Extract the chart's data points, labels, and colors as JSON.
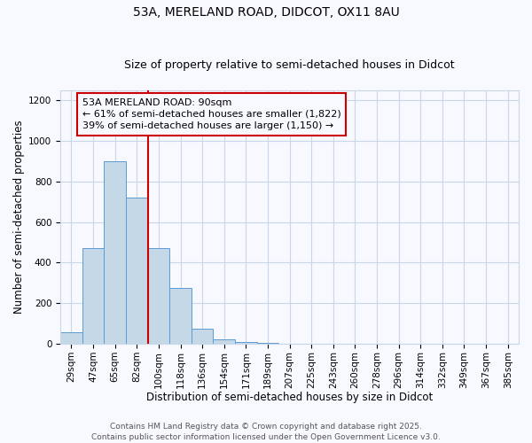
{
  "title_line1": "53A, MERELAND ROAD, DIDCOT, OX11 8AU",
  "title_line2": "Size of property relative to semi-detached houses in Didcot",
  "xlabel": "Distribution of semi-detached houses by size in Didcot",
  "ylabel": "Number of semi-detached properties",
  "categories": [
    "29sqm",
    "47sqm",
    "65sqm",
    "82sqm",
    "100sqm",
    "118sqm",
    "136sqm",
    "154sqm",
    "171sqm",
    "189sqm",
    "207sqm",
    "225sqm",
    "243sqm",
    "260sqm",
    "278sqm",
    "296sqm",
    "314sqm",
    "332sqm",
    "349sqm",
    "367sqm",
    "385sqm"
  ],
  "values": [
    55,
    470,
    900,
    720,
    470,
    275,
    75,
    20,
    10,
    5,
    0,
    0,
    0,
    0,
    0,
    0,
    0,
    0,
    0,
    0,
    0
  ],
  "bar_color": "#c5d8e8",
  "bar_edge_color": "#5b9bd5",
  "red_line_color": "#cc0000",
  "annotation_line1": "53A MERELAND ROAD: 90sqm",
  "annotation_line2": "← 61% of semi-detached houses are smaller (1,822)",
  "annotation_line3": "39% of semi-detached houses are larger (1,150) →",
  "ylim": [
    0,
    1250
  ],
  "yticks": [
    0,
    200,
    400,
    600,
    800,
    1000,
    1200
  ],
  "footer_line1": "Contains HM Land Registry data © Crown copyright and database right 2025.",
  "footer_line2": "Contains public sector information licensed under the Open Government Licence v3.0.",
  "bg_color": "#f8f8ff",
  "grid_color": "#c8d8e8",
  "title_fontsize": 10,
  "subtitle_fontsize": 9,
  "axis_label_fontsize": 8.5,
  "tick_fontsize": 7.5,
  "annotation_fontsize": 8,
  "footer_fontsize": 6.5
}
